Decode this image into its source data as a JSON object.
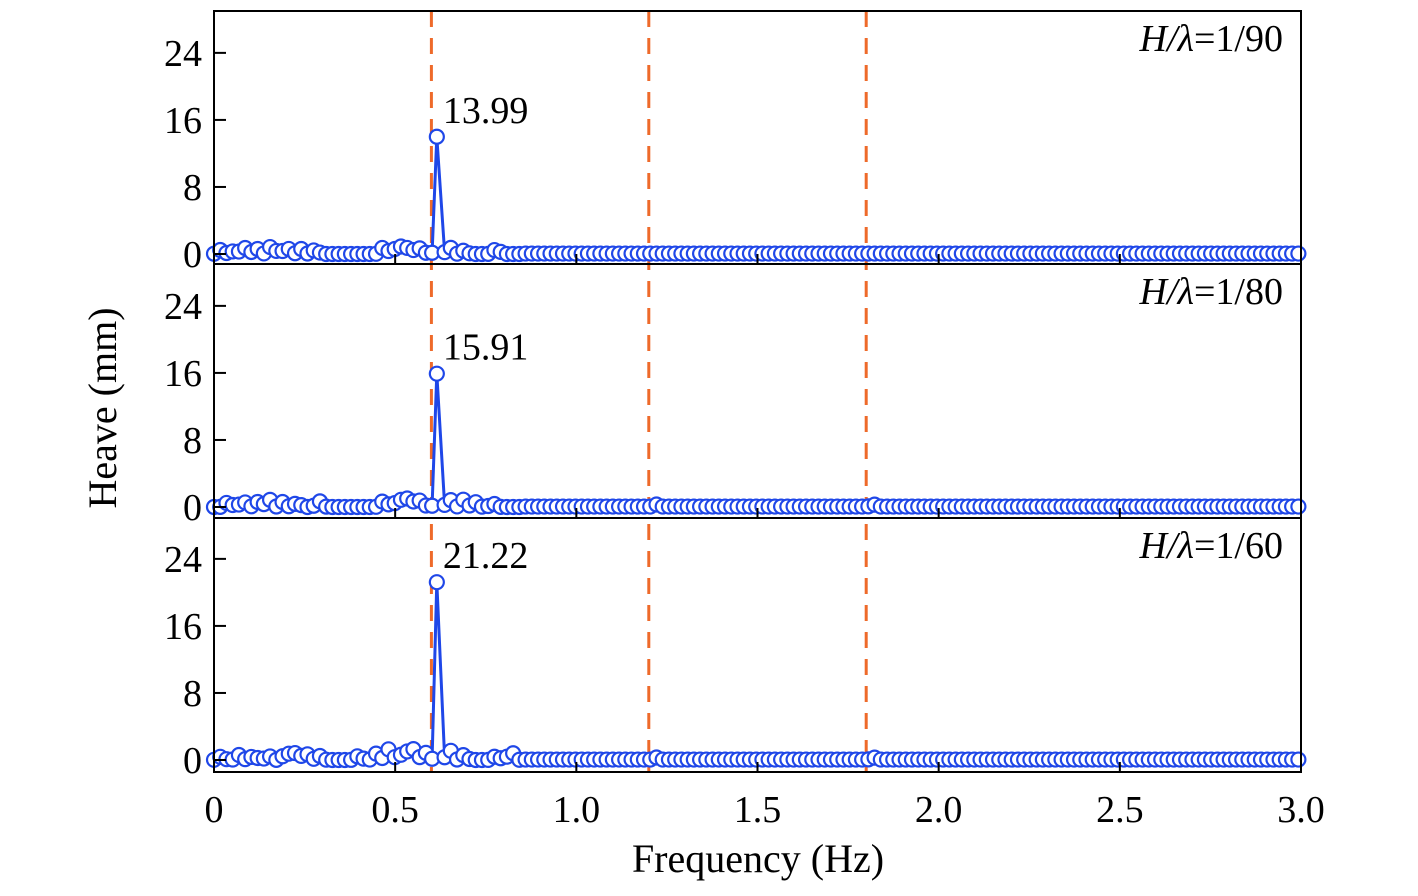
{
  "colors": {
    "series": "#1f47e8",
    "marker_fill": "#ffffff",
    "reference_line": "#ee6a2a",
    "axes": "#000000"
  },
  "chart_data": {
    "type": "line",
    "layout": "three vertically stacked panels sharing the x axis",
    "xlabel": "Frequency (Hz)",
    "ylabel": "Heave (mm)",
    "xlim": [
      0,
      3.0
    ],
    "xticks": [
      "0",
      "0.5",
      "1.0",
      "1.5",
      "2.0",
      "2.5",
      "3.0"
    ],
    "ylim": [
      -1,
      28
    ],
    "yticks": [
      "0",
      "8",
      "16",
      "24"
    ],
    "grid": false,
    "legend": "none",
    "marker": "open circle",
    "reference_lines_x": [
      0.6,
      1.2,
      1.8
    ],
    "panels": [
      {
        "label_prefix": "H/",
        "label_symbol": "λ",
        "label_suffix": "=1/90",
        "peak": {
          "x": 0.615,
          "y": 13.99,
          "label": "13.99"
        },
        "bumps": [
          [
            0.02,
            0.5
          ],
          [
            0.06,
            0.5
          ],
          [
            0.09,
            0.8
          ],
          [
            0.12,
            0.6
          ],
          [
            0.16,
            1.0
          ],
          [
            0.2,
            0.8
          ],
          [
            0.24,
            0.6
          ],
          [
            0.28,
            0.5
          ],
          [
            0.47,
            0.9
          ],
          [
            0.5,
            0.6
          ],
          [
            0.52,
            1.0
          ],
          [
            0.54,
            1.0
          ],
          [
            0.57,
            0.7
          ],
          [
            0.65,
            0.8
          ],
          [
            0.69,
            0.4
          ],
          [
            0.78,
            0.6
          ]
        ]
      },
      {
        "label_prefix": "H/",
        "label_symbol": "λ",
        "label_suffix": "=1/80",
        "peak": {
          "x": 0.615,
          "y": 15.91,
          "label": "15.91"
        },
        "bumps": [
          [
            0.04,
            0.6
          ],
          [
            0.08,
            0.7
          ],
          [
            0.12,
            0.6
          ],
          [
            0.15,
            1.0
          ],
          [
            0.19,
            0.6
          ],
          [
            0.23,
            0.5
          ],
          [
            0.29,
            0.7
          ],
          [
            0.47,
            0.8
          ],
          [
            0.51,
            1.1
          ],
          [
            0.54,
            1.4
          ],
          [
            0.57,
            0.8
          ],
          [
            0.65,
            0.9
          ],
          [
            0.69,
            0.9
          ],
          [
            0.72,
            0.6
          ],
          [
            0.77,
            0.4
          ],
          [
            1.22,
            0.3
          ],
          [
            1.82,
            0.3
          ]
        ]
      },
      {
        "label_prefix": "H/",
        "label_symbol": "λ",
        "label_suffix": "=1/60",
        "peak": {
          "x": 0.615,
          "y": 21.22,
          "label": "21.22"
        },
        "bumps": [
          [
            0.02,
            0.4
          ],
          [
            0.07,
            0.6
          ],
          [
            0.11,
            0.5
          ],
          [
            0.15,
            0.5
          ],
          [
            0.2,
            1.0
          ],
          [
            0.23,
            1.1
          ],
          [
            0.26,
            0.7
          ],
          [
            0.29,
            0.5
          ],
          [
            0.4,
            0.5
          ],
          [
            0.45,
            0.8
          ],
          [
            0.48,
            1.3
          ],
          [
            0.51,
            0.8
          ],
          [
            0.53,
            1.1
          ],
          [
            0.55,
            1.3
          ],
          [
            0.58,
            1.0
          ],
          [
            0.65,
            1.2
          ],
          [
            0.69,
            0.6
          ],
          [
            0.78,
            0.5
          ],
          [
            0.82,
            1.0
          ],
          [
            1.22,
            0.3
          ],
          [
            1.82,
            0.3
          ]
        ]
      }
    ]
  }
}
